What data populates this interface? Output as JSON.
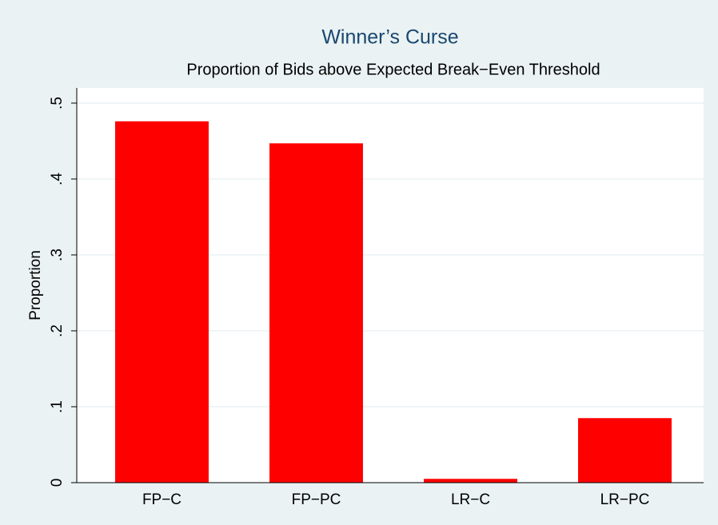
{
  "chart_data": {
    "type": "bar",
    "title": "Winner’s Curse",
    "subtitle": "Proportion of Bids above Expected Break−Even Threshold",
    "y_label": "Proportion",
    "categories": [
      "FP−C",
      "FP−PC",
      "LR−C",
      "LR−PC"
    ],
    "values": [
      0.476,
      0.447,
      0.005,
      0.085
    ],
    "color": "#ff0000",
    "ylim": [
      0,
      0.5
    ],
    "yticks": [
      0,
      {
        "value": 0.1,
        "label": ".1"
      },
      {
        "value": 0.2,
        "label": ".2"
      },
      {
        "value": 0.3,
        "label": ".3"
      },
      {
        "value": 0.4,
        "label": ".4"
      },
      {
        "value": 0.5,
        "label": ".5"
      }
    ],
    "grid": true
  }
}
